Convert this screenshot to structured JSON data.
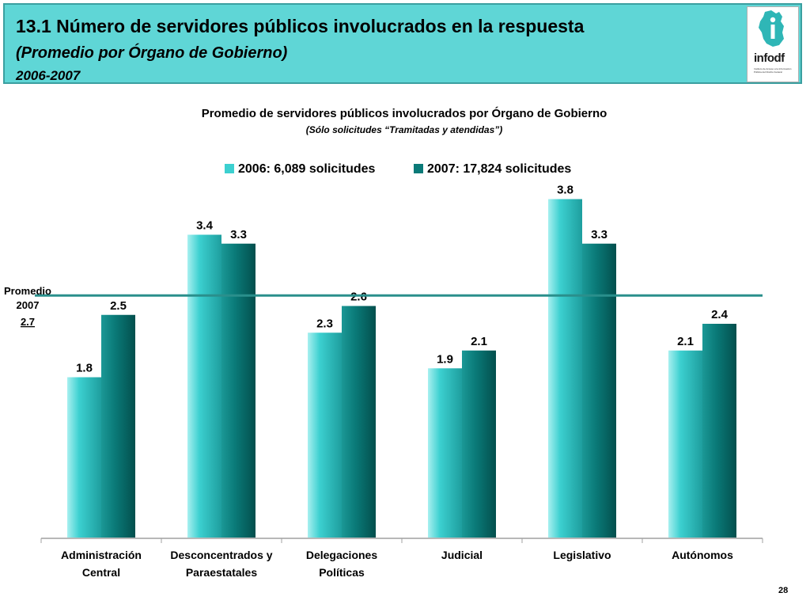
{
  "header": {
    "title": "13.1 Número de servidores públicos involucrados en la respuesta",
    "subtitle": "(Promedio por Órgano de Gobierno)",
    "years": "2006-2007",
    "logo_text": "infodf",
    "logo_small_text": "Instituto de Acceso a la Información Pública del Distrito Federal"
  },
  "chart_data": {
    "type": "bar",
    "title": "Promedio de servidores públicos involucrados por Órgano de Gobierno",
    "subtitle": "(Sólo solicitudes “Tramitadas y atendidas”)",
    "categories": [
      [
        "Administración",
        "Central"
      ],
      [
        "Desconcentrados y",
        "Paraestatales"
      ],
      [
        "Delegaciones",
        "Políticas"
      ],
      [
        "Judicial"
      ],
      [
        "Legislativo"
      ],
      [
        "Autónomos"
      ]
    ],
    "series": [
      {
        "name": "2006: 6,089 solicitudes",
        "values": [
          1.8,
          3.4,
          2.3,
          1.9,
          3.8,
          2.1
        ],
        "labels": [
          "1.8",
          "3.4",
          "2.3",
          "1.9",
          "3.8",
          "2.1"
        ],
        "color": "#3cd0d0"
      },
      {
        "name": "2007: 17,824 solicitudes",
        "values": [
          2.5,
          3.3,
          2.6,
          2.1,
          3.3,
          2.4
        ],
        "labels": [
          "2.5",
          "3.3",
          "2.6",
          "2.1",
          "3.3",
          "2.4"
        ],
        "color": "#0a7a78"
      }
    ],
    "ylim": [
      0,
      4
    ],
    "reference_line": {
      "value": 2.7,
      "label_lines": [
        "Promedio",
        "2007"
      ],
      "value_label": "2.7",
      "color": "#2a8f8c"
    },
    "legend_position": "top",
    "grid": false
  },
  "page_number": "28"
}
